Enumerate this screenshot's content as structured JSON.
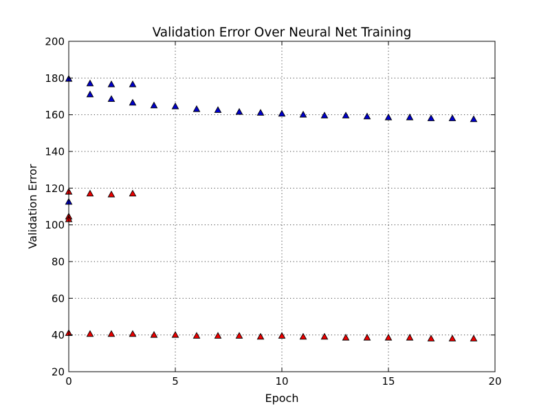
{
  "chart_data": {
    "type": "scatter",
    "title": "Validation Error Over Neural Net Training",
    "xlabel": "Epoch",
    "ylabel": "Validation Error",
    "xlim": [
      0,
      20
    ],
    "ylim": [
      20,
      200
    ],
    "xticks": [
      0,
      5,
      10,
      15,
      20
    ],
    "yticks": [
      20,
      40,
      60,
      80,
      100,
      120,
      140,
      160,
      180,
      200
    ],
    "grid": true,
    "marker": "triangle-up",
    "series": [
      {
        "color": "#0000cc",
        "points": [
          [
            0,
            179.5
          ],
          [
            0,
            112.5
          ],
          [
            1,
            177
          ],
          [
            1,
            171
          ],
          [
            2,
            176.5
          ],
          [
            2,
            168.5
          ],
          [
            3,
            176.5
          ],
          [
            3,
            166.5
          ],
          [
            4,
            165
          ],
          [
            5,
            164.5
          ],
          [
            6,
            163
          ],
          [
            7,
            162.5
          ],
          [
            8,
            161.5
          ],
          [
            9,
            161
          ],
          [
            10,
            160.5
          ],
          [
            11,
            160
          ],
          [
            12,
            159.5
          ],
          [
            13,
            159.5
          ],
          [
            14,
            159
          ],
          [
            15,
            158.5
          ],
          [
            16,
            158.5
          ],
          [
            17,
            158
          ],
          [
            18,
            158
          ],
          [
            19,
            157.5
          ]
        ]
      },
      {
        "color": "#ee0000",
        "points": [
          [
            0,
            118
          ],
          [
            0,
            104.5
          ],
          [
            0,
            103
          ],
          [
            1,
            117
          ],
          [
            2,
            116.5
          ],
          [
            3,
            117
          ],
          [
            0,
            41
          ],
          [
            1,
            40.5
          ],
          [
            2,
            40.5
          ],
          [
            3,
            40.5
          ],
          [
            4,
            40
          ],
          [
            5,
            40
          ],
          [
            6,
            39.5
          ],
          [
            7,
            39.5
          ],
          [
            8,
            39.5
          ],
          [
            9,
            39
          ],
          [
            10,
            39.5
          ],
          [
            11,
            39
          ],
          [
            12,
            39
          ],
          [
            13,
            38.5
          ],
          [
            14,
            38.5
          ],
          [
            15,
            38.5
          ],
          [
            16,
            38.5
          ],
          [
            17,
            38
          ],
          [
            18,
            38
          ],
          [
            19,
            38
          ]
        ]
      }
    ]
  }
}
